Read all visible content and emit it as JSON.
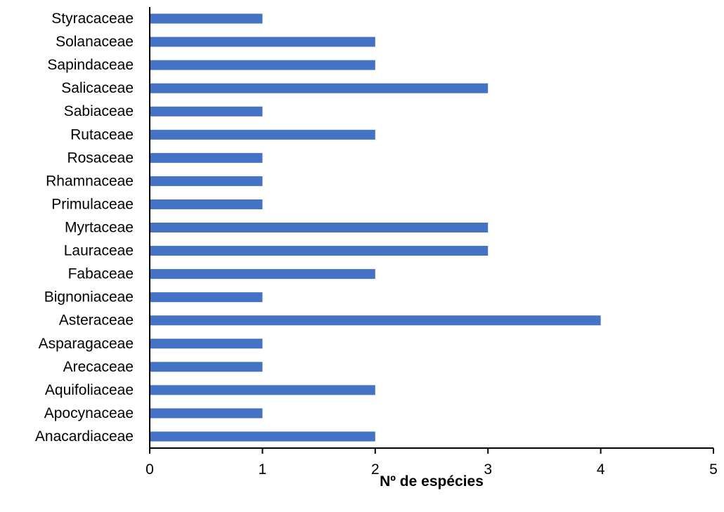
{
  "chart_data": {
    "type": "bar",
    "orientation": "horizontal",
    "title": "",
    "xlabel": "Nº de espécies",
    "ylabel": "",
    "xlim": [
      0,
      5
    ],
    "xticks": [
      0,
      1,
      2,
      3,
      4,
      5
    ],
    "grid": false,
    "legend": "none",
    "bar_color": "#4472C4",
    "categories": [
      "Styracaceae",
      "Solanaceae",
      "Sapindaceae",
      "Salicaceae",
      "Sabiaceae",
      "Rutaceae",
      "Rosaceae",
      "Rhamnaceae",
      "Primulaceae",
      "Myrtaceae",
      "Lauraceae",
      "Fabaceae",
      "Bignoniaceae",
      "Asteraceae",
      "Asparagaceae",
      "Arecaceae",
      "Aquifoliaceae",
      "Apocynaceae",
      "Anacardiaceae"
    ],
    "values": [
      1,
      2,
      2,
      3,
      1,
      2,
      1,
      1,
      1,
      3,
      3,
      2,
      1,
      4,
      1,
      1,
      2,
      1,
      2
    ]
  }
}
